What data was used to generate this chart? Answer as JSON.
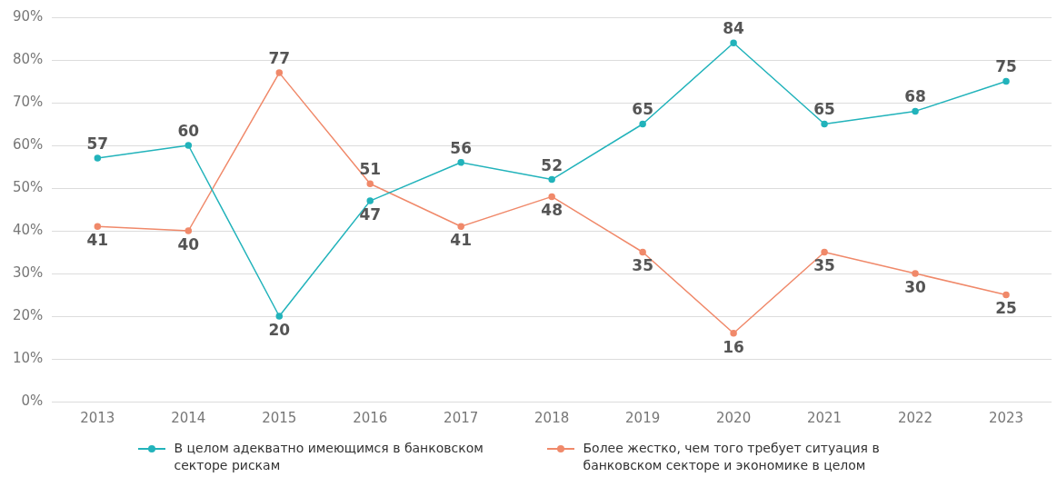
{
  "chart_data": {
    "type": "line",
    "categories": [
      "2013",
      "2014",
      "2015",
      "2016",
      "2017",
      "2018",
      "2019",
      "2020",
      "2021",
      "2022",
      "2023"
    ],
    "series": [
      {
        "name": "В целом адекватно имеющимся в банковском секторе рискам",
        "color": "#22b3bb",
        "values": [
          57,
          60,
          20,
          47,
          56,
          52,
          65,
          84,
          65,
          68,
          75
        ]
      },
      {
        "name": "Более жестко, чем того требует ситуация в банковском секторе и экономике в целом",
        "color": "#f0896a",
        "values": [
          41,
          40,
          77,
          51,
          41,
          48,
          35,
          16,
          35,
          30,
          25
        ]
      }
    ],
    "ylim": [
      0,
      90
    ],
    "yticks": [
      {
        "value": 0,
        "label": "0%"
      },
      {
        "value": 10,
        "label": "10%"
      },
      {
        "value": 20,
        "label": "20%"
      },
      {
        "value": 30,
        "label": "30%"
      },
      {
        "value": 40,
        "label": "40%"
      },
      {
        "value": 50,
        "label": "50%"
      },
      {
        "value": 60,
        "label": "60%"
      },
      {
        "value": 70,
        "label": "70%"
      },
      {
        "value": 80,
        "label": "80%"
      },
      {
        "value": 90,
        "label": "90%"
      }
    ],
    "grid": "y",
    "legend": "bottom",
    "marker": "circle",
    "line_style": "solid",
    "data_labels": true
  }
}
